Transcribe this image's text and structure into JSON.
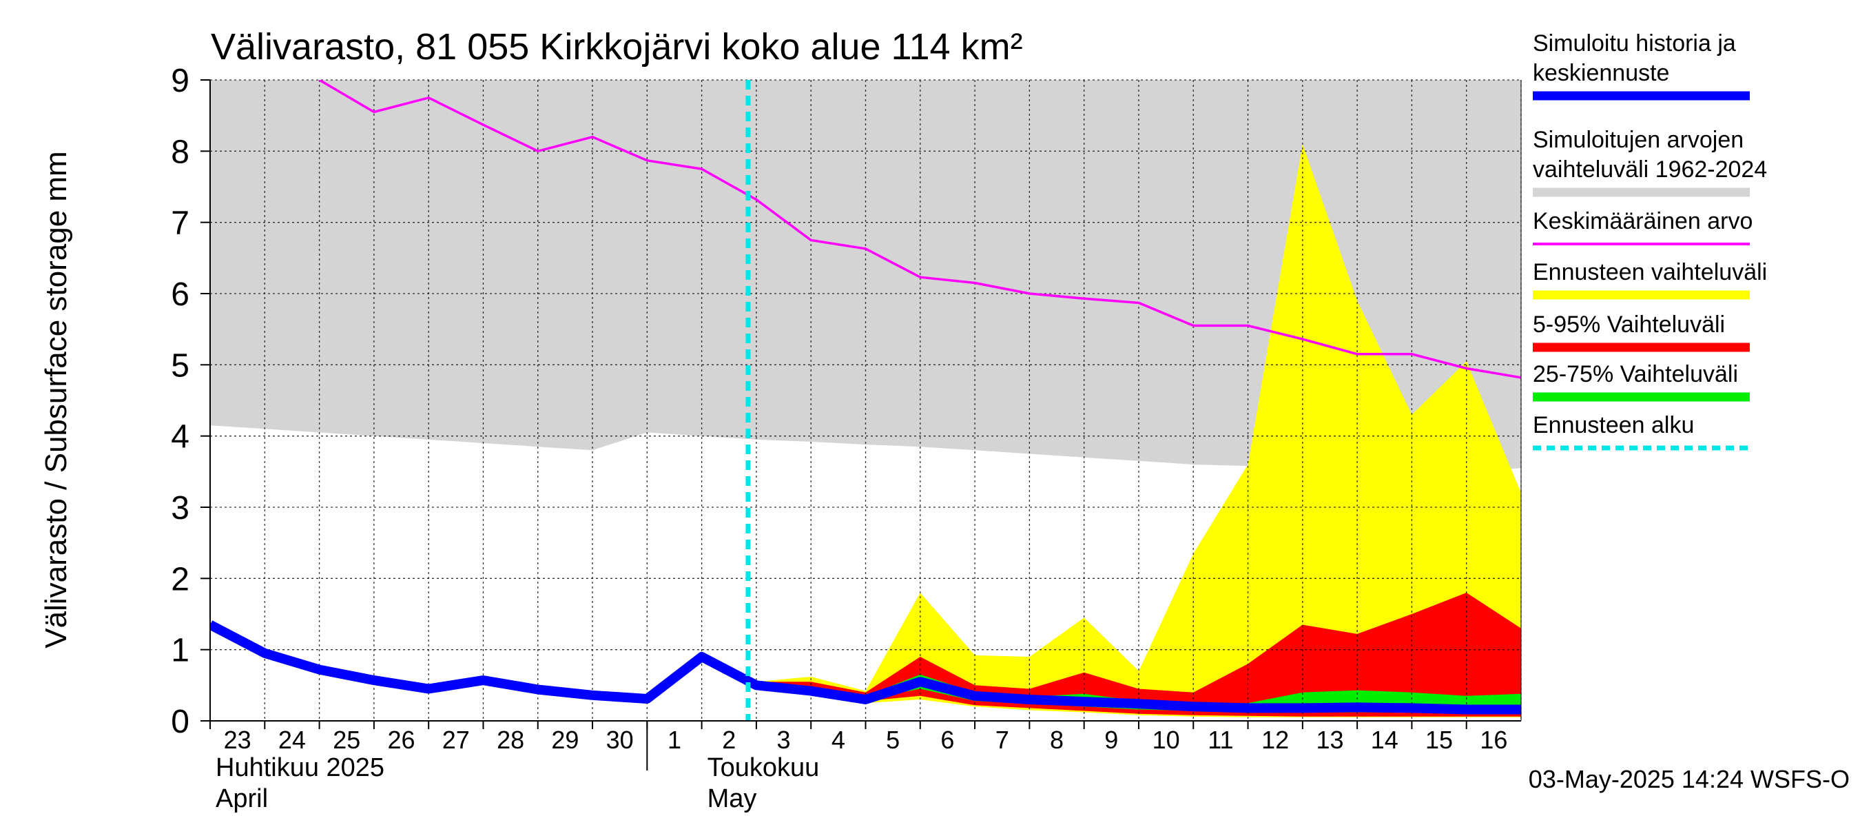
{
  "chart_data": {
    "type": "area",
    "title": "Välivarasto, 81 055 Kirkkojärvi koko alue 114 km²",
    "ylabel": "Välivarasto / Subsurface storage  mm",
    "ylim": [
      0,
      9
    ],
    "yticks": [
      "0",
      "1",
      "2",
      "3",
      "4",
      "5",
      "6",
      "7",
      "8",
      "9"
    ],
    "grid": true,
    "x": [
      "2025-04-23",
      "2025-04-24",
      "2025-04-25",
      "2025-04-26",
      "2025-04-27",
      "2025-04-28",
      "2025-04-29",
      "2025-04-30",
      "2025-05-01",
      "2025-05-02",
      "2025-05-03",
      "2025-05-04",
      "2025-05-05",
      "2025-05-06",
      "2025-05-07",
      "2025-05-08",
      "2025-05-09",
      "2025-05-10",
      "2025-05-11",
      "2025-05-12",
      "2025-05-13",
      "2025-05-14",
      "2025-05-15",
      "2025-05-16",
      "2025-05-17"
    ],
    "xtick_labels": [
      "23",
      "24",
      "25",
      "26",
      "27",
      "28",
      "29",
      "30",
      "1",
      "2",
      "3",
      "4",
      "5",
      "6",
      "7",
      "8",
      "9",
      "10",
      "11",
      "12",
      "13",
      "14",
      "15",
      "16"
    ],
    "month_labels": [
      {
        "fi": "Huhtikuu  2025",
        "en": "April"
      },
      {
        "fi": "Toukokuu",
        "en": "May"
      }
    ],
    "forecast_start": "2025-05-03",
    "legend_position": "right",
    "series": [
      {
        "name": "Simuloitujen arvojen vaihteluväli 1962-2024",
        "color": "#d4d4d4",
        "lower": [
          4.15,
          4.1,
          4.05,
          4.0,
          3.95,
          3.9,
          3.85,
          3.8,
          4.05,
          4.0,
          3.95,
          3.92,
          3.88,
          3.85,
          3.8,
          3.75,
          3.7,
          3.65,
          3.6,
          3.58,
          3.55,
          3.5,
          3.5,
          3.5,
          3.55
        ],
        "upper": [
          9,
          9,
          9,
          9,
          9,
          9,
          9,
          9,
          9,
          9,
          9,
          9,
          9,
          9,
          9,
          9,
          9,
          9,
          9,
          9,
          9,
          9,
          9,
          9,
          9
        ]
      },
      {
        "name": "Ennusteen vaihteluväli",
        "color": "#ffff00",
        "lower": [
          null,
          null,
          null,
          null,
          null,
          null,
          null,
          null,
          null,
          null,
          0.5,
          0.38,
          0.25,
          0.3,
          0.2,
          0.15,
          0.12,
          0.08,
          0.06,
          0.05,
          0.05,
          0.05,
          0.05,
          0.05,
          0.05
        ],
        "upper": [
          null,
          null,
          null,
          null,
          null,
          null,
          null,
          null,
          null,
          null,
          0.55,
          0.62,
          0.42,
          1.8,
          0.92,
          0.9,
          1.45,
          0.7,
          2.35,
          3.6,
          8.1,
          5.9,
          4.3,
          5.05,
          3.2
        ]
      },
      {
        "name": "5-95% Vaihteluväli",
        "color": "#ff0000",
        "lower": [
          null,
          null,
          null,
          null,
          null,
          null,
          null,
          null,
          null,
          null,
          0.5,
          0.4,
          0.28,
          0.35,
          0.22,
          0.18,
          0.14,
          0.1,
          0.08,
          0.07,
          0.06,
          0.06,
          0.06,
          0.06,
          0.06
        ],
        "upper": [
          null,
          null,
          null,
          null,
          null,
          null,
          null,
          null,
          null,
          null,
          0.55,
          0.55,
          0.4,
          0.9,
          0.5,
          0.45,
          0.68,
          0.45,
          0.4,
          0.8,
          1.35,
          1.22,
          1.5,
          1.8,
          1.3
        ]
      },
      {
        "name": "25-75% Vaihteluväli",
        "color": "#00ee00",
        "lower": [
          null,
          null,
          null,
          null,
          null,
          null,
          null,
          null,
          null,
          null,
          0.5,
          0.42,
          0.3,
          0.45,
          0.28,
          0.24,
          0.2,
          0.16,
          0.14,
          0.13,
          0.12,
          0.12,
          0.12,
          0.11,
          0.11
        ],
        "upper": [
          null,
          null,
          null,
          null,
          null,
          null,
          null,
          null,
          null,
          null,
          0.52,
          0.48,
          0.35,
          0.65,
          0.4,
          0.34,
          0.38,
          0.28,
          0.25,
          0.25,
          0.4,
          0.43,
          0.4,
          0.35,
          0.38
        ]
      },
      {
        "name": "Keskimääräinen arvo",
        "color": "#ff00ff",
        "values": [
          null,
          null,
          9.0,
          8.55,
          8.75,
          8.37,
          8.0,
          8.2,
          7.87,
          7.75,
          7.32,
          6.75,
          6.63,
          6.23,
          6.15,
          6.0,
          5.93,
          5.87,
          5.55,
          5.55,
          5.36,
          5.15,
          5.15,
          4.95,
          4.82
        ]
      },
      {
        "name": "Simuloitu historia ja keskiennuste",
        "color": "#0000ff",
        "values": [
          1.35,
          0.95,
          0.72,
          0.57,
          0.45,
          0.57,
          0.44,
          0.36,
          0.31,
          0.9,
          0.5,
          0.42,
          0.3,
          0.55,
          0.35,
          0.3,
          0.27,
          0.24,
          0.2,
          0.18,
          0.18,
          0.19,
          0.18,
          0.16,
          0.16
        ]
      },
      {
        "name": "Ennusteen alku",
        "color": "#00e5e5"
      }
    ],
    "legend": [
      {
        "label": "Simuloitu historia ja\nkeskiennuste",
        "color": "#0000ff",
        "style": "thick"
      },
      {
        "label": "Simuloitujen arvojen\nvaihteluväli 1962-2024",
        "color": "#d4d4d4",
        "style": "band"
      },
      {
        "label": "Keskimääräinen arvo",
        "color": "#ff00ff",
        "style": "line"
      },
      {
        "label": "Ennusteen vaihteluväli",
        "color": "#ffff00",
        "style": "band"
      },
      {
        "label": "5-95% Vaihteluväli",
        "color": "#ff0000",
        "style": "band"
      },
      {
        "label": "25-75% Vaihteluväli",
        "color": "#00ee00",
        "style": "band"
      },
      {
        "label": "Ennusteen alku",
        "color": "#00e5e5",
        "style": "dashed"
      }
    ]
  },
  "footer": {
    "timestamp": "03-May-2025 14:24 WSFS-O"
  }
}
